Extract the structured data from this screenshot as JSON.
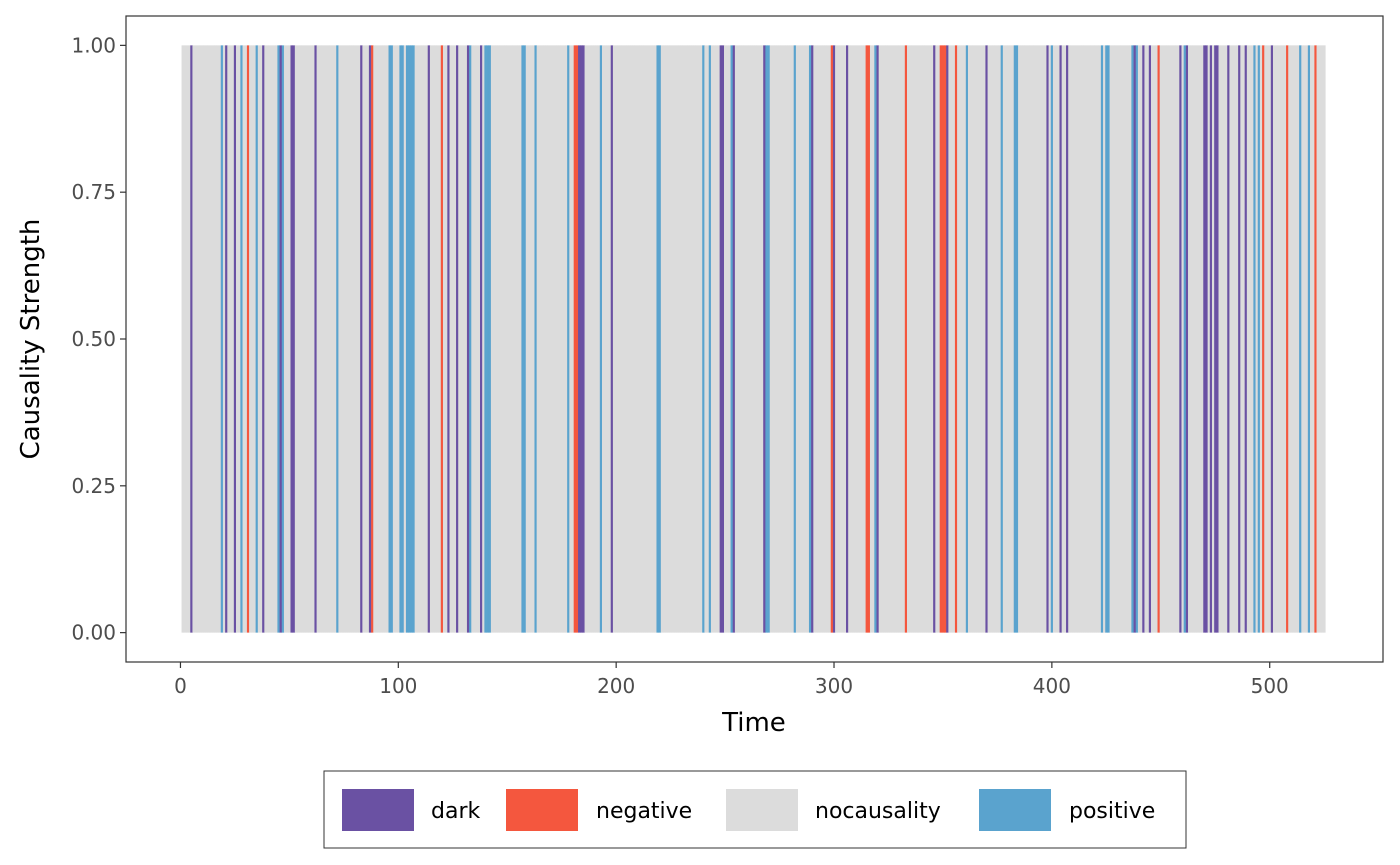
{
  "chart_data": {
    "type": "bar",
    "title": "",
    "xlabel": "Time",
    "ylabel": "Causality Strength",
    "xlim": [
      -25,
      552
    ],
    "ylim": [
      -0.05,
      1.05
    ],
    "x_ticks": [
      0,
      100,
      200,
      300,
      400,
      500
    ],
    "y_ticks": [
      0.0,
      0.25,
      0.5,
      0.75,
      1.0
    ],
    "y_tick_labels": [
      "0.00",
      "0.25",
      "0.50",
      "0.75",
      "1.00"
    ],
    "x_tick_labels": [
      "0",
      "100",
      "200",
      "300",
      "400",
      "500"
    ],
    "grid": false,
    "legend_position": "bottom",
    "default_value": 1.0,
    "default_category": "nocausality",
    "x_range": [
      1,
      525
    ],
    "legend": [
      {
        "key": "dark",
        "label": "dark",
        "color": "#6A51A3"
      },
      {
        "key": "negative",
        "label": "negative",
        "color": "#F4573E"
      },
      {
        "key": "nocausality",
        "label": "nocausality",
        "color": "#DCDCDC"
      },
      {
        "key": "positive",
        "label": "positive",
        "color": "#5AA3CE"
      }
    ],
    "series": [
      {
        "name": "dark",
        "x": [
          5,
          21,
          25,
          38,
          46,
          51,
          52,
          62,
          83,
          87,
          114,
          123,
          127,
          132,
          138,
          182,
          183,
          184,
          185,
          198,
          248,
          249,
          254,
          268,
          290,
          300,
          306,
          320,
          346,
          352,
          370,
          398,
          404,
          407,
          438,
          442,
          445,
          459,
          462,
          470,
          471,
          473,
          475,
          476,
          481,
          486,
          489,
          501
        ]
      },
      {
        "name": "negative",
        "x": [
          31,
          88,
          120,
          181,
          182,
          299,
          315,
          316,
          333,
          349,
          350,
          351,
          356,
          449,
          497,
          508,
          521
        ]
      },
      {
        "name": "positive",
        "x": [
          19,
          28,
          35,
          45,
          47,
          72,
          96,
          97,
          101,
          102,
          104,
          105,
          106,
          107,
          133,
          140,
          141,
          142,
          157,
          158,
          163,
          178,
          193,
          219,
          220,
          240,
          243,
          253,
          269,
          270,
          282,
          289,
          319,
          361,
          377,
          383,
          384,
          400,
          423,
          425,
          426,
          437,
          439,
          461,
          493,
          495,
          514,
          518
        ]
      }
    ]
  }
}
